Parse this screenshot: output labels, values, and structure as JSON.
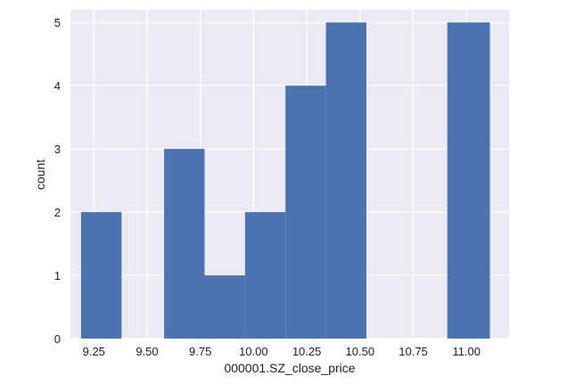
{
  "chart_data": {
    "type": "bar",
    "title": "",
    "xlabel": "000001.SZ_close_price",
    "ylabel": "count",
    "bins": [
      {
        "start": 9.19,
        "end": 9.38,
        "count": 2
      },
      {
        "start": 9.38,
        "end": 9.58,
        "count": 0
      },
      {
        "start": 9.58,
        "end": 9.77,
        "count": 3
      },
      {
        "start": 9.77,
        "end": 9.96,
        "count": 1
      },
      {
        "start": 9.96,
        "end": 10.15,
        "count": 2
      },
      {
        "start": 10.15,
        "end": 10.34,
        "count": 4
      },
      {
        "start": 10.34,
        "end": 10.53,
        "count": 5
      },
      {
        "start": 10.53,
        "end": 10.72,
        "count": 0
      },
      {
        "start": 10.72,
        "end": 10.91,
        "count": 0
      },
      {
        "start": 10.91,
        "end": 11.11,
        "count": 5
      }
    ],
    "xlim": [
      9.14,
      11.2
    ],
    "ylim": [
      0,
      5.2
    ],
    "x_ticks": [
      "9.25",
      "9.50",
      "9.75",
      "10.00",
      "10.25",
      "10.50",
      "10.75",
      "11.00"
    ],
    "y_ticks": [
      "0",
      "1",
      "2",
      "3",
      "4",
      "5"
    ],
    "grid": true,
    "colors": {
      "bar": "#4c72b0",
      "plot_background": "#eaeaf2",
      "grid": "#ffffff"
    }
  }
}
